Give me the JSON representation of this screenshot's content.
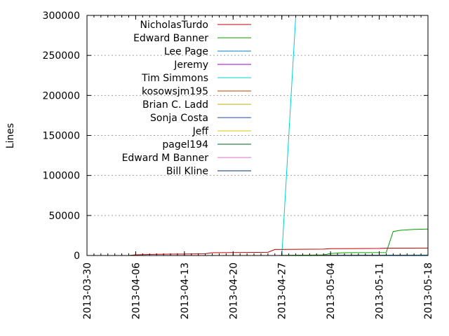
{
  "chart_data": {
    "type": "line",
    "title": "",
    "xlabel": "",
    "ylabel": "Lines",
    "xlim": [
      "2013-03-30",
      "2013-05-18"
    ],
    "ylim": [
      0,
      300000
    ],
    "x_ticks": [
      "2013-03-30",
      "2013-04-06",
      "2013-04-13",
      "2013-04-20",
      "2013-04-27",
      "2013-05-04",
      "2013-05-11",
      "2013-05-18"
    ],
    "y_ticks": [
      "0",
      "50000",
      "100000",
      "150000",
      "200000",
      "250000",
      "300000"
    ],
    "grid": true,
    "legend_position": "top-left",
    "series": [
      {
        "name": "NicholasTurdo",
        "color": "#c00000",
        "points": [
          [
            "2013-04-05",
            0
          ],
          [
            "2013-04-06",
            900
          ],
          [
            "2013-04-09",
            1500
          ],
          [
            "2013-04-16",
            2200
          ],
          [
            "2013-04-17",
            3500
          ],
          [
            "2013-04-25",
            4000
          ],
          [
            "2013-04-26",
            7500
          ],
          [
            "2013-05-03",
            8000
          ],
          [
            "2013-05-04",
            8500
          ],
          [
            "2013-05-11",
            8800
          ],
          [
            "2013-05-12",
            9200
          ],
          [
            "2013-05-18",
            9300
          ]
        ]
      },
      {
        "name": "Edward Banner",
        "color": "#00a000",
        "points": [
          [
            "2013-04-26",
            0
          ],
          [
            "2013-05-03",
            800
          ],
          [
            "2013-05-04",
            2500
          ],
          [
            "2013-05-06",
            3500
          ],
          [
            "2013-05-12",
            3800
          ],
          [
            "2013-05-13",
            30000
          ],
          [
            "2013-05-14",
            31500
          ],
          [
            "2013-05-16",
            32500
          ],
          [
            "2013-05-18",
            33000
          ]
        ]
      },
      {
        "name": "Lee Page",
        "color": "#0080c0",
        "points": [
          [
            "2013-04-26",
            0
          ],
          [
            "2013-05-18",
            500
          ]
        ]
      },
      {
        "name": "Jeremy",
        "color": "#a000c0",
        "points": [
          [
            "2013-04-26",
            0
          ],
          [
            "2013-05-18",
            200
          ]
        ]
      },
      {
        "name": "Tim Simmons",
        "color": "#00d0d0",
        "points": [
          [
            "2013-04-27",
            0
          ],
          [
            "2013-04-29",
            300000
          ],
          [
            "2013-05-07",
            300000
          ]
        ]
      },
      {
        "name": "kosowsjm195",
        "color": "#c04000",
        "points": [
          [
            "2013-04-26",
            0
          ],
          [
            "2013-05-18",
            400
          ]
        ]
      },
      {
        "name": "Brian C. Ladd",
        "color": "#c0b000",
        "points": [
          [
            "2013-04-26",
            0
          ],
          [
            "2013-05-18",
            300
          ]
        ]
      },
      {
        "name": "Sonja Costa",
        "color": "#2040c0",
        "points": [
          [
            "2013-04-26",
            0
          ],
          [
            "2013-05-18",
            300
          ]
        ]
      },
      {
        "name": "Jeff",
        "color": "#e0c000",
        "points": [
          [
            "2013-04-26",
            0
          ],
          [
            "2013-05-18",
            200
          ]
        ]
      },
      {
        "name": "pagel194",
        "color": "#006020",
        "points": [
          [
            "2013-04-26",
            0
          ],
          [
            "2013-05-18",
            400
          ]
        ]
      },
      {
        "name": "Edward M Banner",
        "color": "#e070c0",
        "points": [
          [
            "2013-04-26",
            0
          ],
          [
            "2013-05-18",
            200
          ]
        ]
      },
      {
        "name": "Bill Kline",
        "color": "#003080",
        "points": [
          [
            "2013-04-26",
            0
          ],
          [
            "2013-05-18",
            300
          ]
        ]
      }
    ]
  }
}
